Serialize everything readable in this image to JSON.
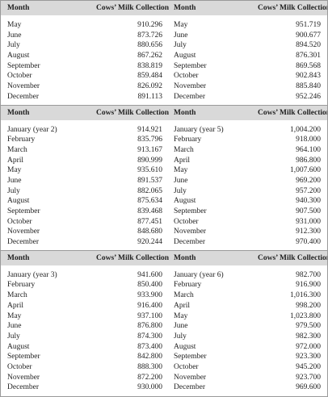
{
  "sections": [
    {
      "header": [
        "Month",
        "Cows’ Milk Collection",
        "Month",
        "Cows’ Milk Collection"
      ],
      "rows": [
        [
          "May",
          "910.296",
          "May",
          "951.719"
        ],
        [
          "June",
          "873.726",
          "June",
          "900.677"
        ],
        [
          "July",
          "880.656",
          "July",
          "894.520"
        ],
        [
          "August",
          "867.262",
          "August",
          "876.301"
        ],
        [
          "September",
          "838.819",
          "September",
          "869.568"
        ],
        [
          "October",
          "859.484",
          "October",
          "902.843"
        ],
        [
          "November",
          "826.092",
          "November",
          "885.840"
        ],
        [
          "December",
          "891.113",
          "December",
          "952.246"
        ]
      ]
    },
    {
      "header": [
        "Month",
        "Cows’ Milk Collection",
        "Month",
        "Cows’ Milk Collection"
      ],
      "rows": [
        [
          "January (year 2)",
          "914.921",
          "January (year 5)",
          "1,004.200"
        ],
        [
          "February",
          "835.796",
          "February",
          "918.000"
        ],
        [
          "March",
          "913.167",
          "March",
          "964.100"
        ],
        [
          "April",
          "890.999",
          "April",
          "986.800"
        ],
        [
          "May",
          "935.610",
          "May",
          "1,007.600"
        ],
        [
          "June",
          "891.537",
          "June",
          "969.200"
        ],
        [
          "July",
          "882.065",
          "July",
          "957.200"
        ],
        [
          "August",
          "875.634",
          "August",
          "940.300"
        ],
        [
          "September",
          "839.468",
          "September",
          "907.500"
        ],
        [
          "October",
          "877.451",
          "October",
          "931.000"
        ],
        [
          "November",
          "848.680",
          "November",
          "912.300"
        ],
        [
          "December",
          "920.244",
          "December",
          "970.400"
        ]
      ]
    },
    {
      "header": [
        "Month",
        "Cows’ Milk Collection",
        "Month",
        "Cows’ Milk Collection"
      ],
      "rows": [
        [
          "January (year 3)",
          "941.600",
          "January (year 6)",
          "982.700"
        ],
        [
          "February",
          "850.400",
          "February",
          "916.900"
        ],
        [
          "March",
          "933.900",
          "March",
          "1,016.300"
        ],
        [
          "April",
          "916.400",
          "April",
          "998.200"
        ],
        [
          "May",
          "937.100",
          "May",
          "1,023.800"
        ],
        [
          "June",
          "876.800",
          "June",
          "979.500"
        ],
        [
          "July",
          "874.300",
          "July",
          "982.300"
        ],
        [
          "August",
          "873.400",
          "August",
          "972.000"
        ],
        [
          "September",
          "842.800",
          "September",
          "923.300"
        ],
        [
          "October",
          "888.300",
          "October",
          "945.200"
        ],
        [
          "November",
          "872.200",
          "November",
          "923.700"
        ],
        [
          "December",
          "930.000",
          "December",
          "969.600"
        ]
      ]
    }
  ]
}
